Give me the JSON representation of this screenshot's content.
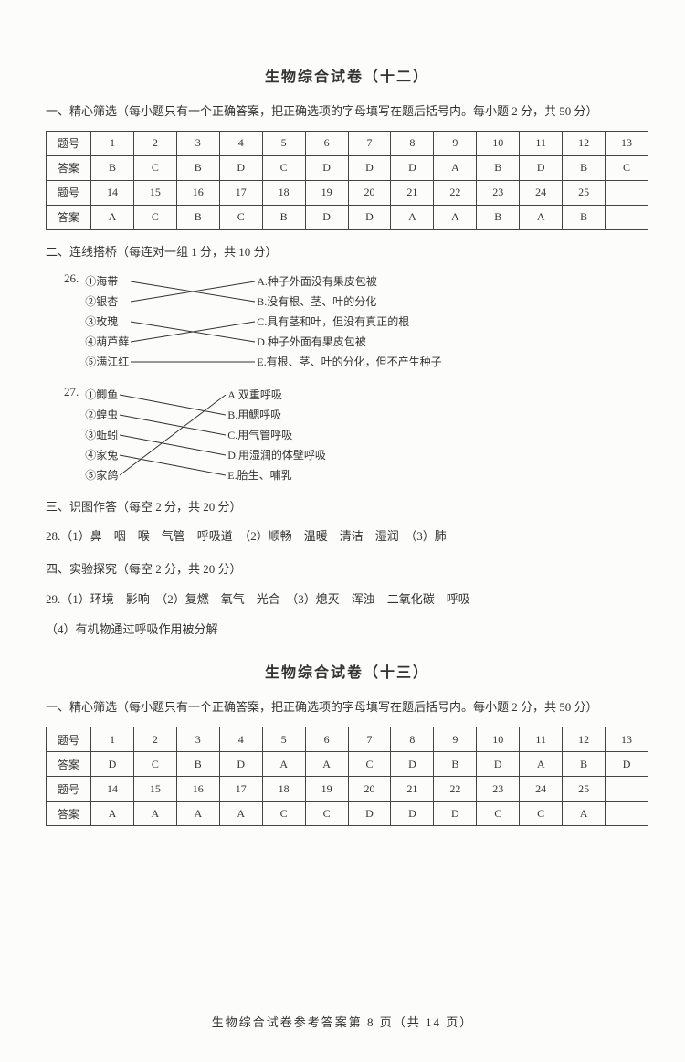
{
  "paper12": {
    "title": "生物综合试卷（十二）",
    "section1_header": "一、精心筛选（每小题只有一个正确答案，把正确选项的字母填写在题后括号内。每小题 2 分，共 50 分）",
    "table": {
      "row_labels": [
        "题号",
        "答案",
        "题号",
        "答案"
      ],
      "cols": 13,
      "q_nums_1": [
        "1",
        "2",
        "3",
        "4",
        "5",
        "6",
        "7",
        "8",
        "9",
        "10",
        "11",
        "12",
        "13"
      ],
      "answers_1": [
        "B",
        "C",
        "B",
        "D",
        "C",
        "D",
        "D",
        "D",
        "A",
        "B",
        "D",
        "B",
        "C"
      ],
      "q_nums_2": [
        "14",
        "15",
        "16",
        "17",
        "18",
        "19",
        "20",
        "21",
        "22",
        "23",
        "24",
        "25",
        ""
      ],
      "answers_2": [
        "A",
        "C",
        "B",
        "C",
        "B",
        "D",
        "D",
        "A",
        "A",
        "B",
        "A",
        "B",
        ""
      ]
    },
    "section2_header": "二、连线搭桥（每连对一组 1 分，共 10 分）",
    "q26": {
      "num": "26.",
      "left": [
        "①海带",
        "②银杏",
        "③玫瑰",
        "④葫芦藓",
        "⑤满江红"
      ],
      "right": [
        "A.种子外面没有果皮包被",
        "B.没有根、茎、叶的分化",
        "C.具有茎和叶，但没有真正的根",
        "D.种子外面有果皮包被",
        "E.有根、茎、叶的分化，但不产生种子"
      ],
      "connections": [
        [
          0,
          1
        ],
        [
          1,
          0
        ],
        [
          2,
          3
        ],
        [
          3,
          2
        ],
        [
          4,
          4
        ]
      ]
    },
    "q27": {
      "num": "27.",
      "left": [
        "①鲫鱼",
        "②蝗虫",
        "③蚯蚓",
        "④家兔",
        "⑤家鸽"
      ],
      "right": [
        "A.双重呼吸",
        "B.用鳃呼吸",
        "C.用气管呼吸",
        "D.用湿润的体壁呼吸",
        "E.胎生、哺乳"
      ],
      "connections": [
        [
          0,
          1
        ],
        [
          1,
          2
        ],
        [
          2,
          3
        ],
        [
          3,
          4
        ],
        [
          4,
          0
        ]
      ]
    },
    "section3_header": "三、识图作答（每空 2 分，共 20 分）",
    "q28": "28.（1）鼻　咽　喉　气管　呼吸道　（2）顺畅　温暖　清洁　湿润　（3）肺",
    "section4_header": "四、实验探究（每空 2 分，共 20 分）",
    "q29_1": "29.（1）环境　影响　（2）复燃　氧气　光合　（3）熄灭　浑浊　二氧化碳　呼吸",
    "q29_2": "（4）有机物通过呼吸作用被分解"
  },
  "paper13": {
    "title": "生物综合试卷（十三）",
    "section1_header": "一、精心筛选（每小题只有一个正确答案，把正确选项的字母填写在题后括号内。每小题 2 分，共 50 分）",
    "table": {
      "row_labels": [
        "题号",
        "答案",
        "题号",
        "答案"
      ],
      "q_nums_1": [
        "1",
        "2",
        "3",
        "4",
        "5",
        "6",
        "7",
        "8",
        "9",
        "10",
        "11",
        "12",
        "13"
      ],
      "answers_1": [
        "D",
        "C",
        "B",
        "D",
        "A",
        "A",
        "C",
        "D",
        "B",
        "D",
        "A",
        "B",
        "D"
      ],
      "q_nums_2": [
        "14",
        "15",
        "16",
        "17",
        "18",
        "19",
        "20",
        "21",
        "22",
        "23",
        "24",
        "25",
        ""
      ],
      "answers_2": [
        "A",
        "A",
        "A",
        "A",
        "C",
        "C",
        "D",
        "D",
        "D",
        "C",
        "C",
        "A",
        ""
      ]
    }
  },
  "footer": "生物综合试卷参考答案第 8 页（共 14 页）"
}
